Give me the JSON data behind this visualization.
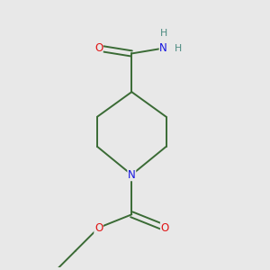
{
  "background_color": "#e8e8e8",
  "bond_color": "#3a6b35",
  "N_color": "#1414e0",
  "O_color": "#e01414",
  "H_color": "#4a8a80",
  "font_size_atom": 8.5,
  "lw": 1.4,
  "figsize": [
    3.0,
    3.0
  ],
  "dpi": 100,
  "xlim": [
    -1.3,
    1.4
  ],
  "ylim": [
    -1.9,
    2.1
  ]
}
